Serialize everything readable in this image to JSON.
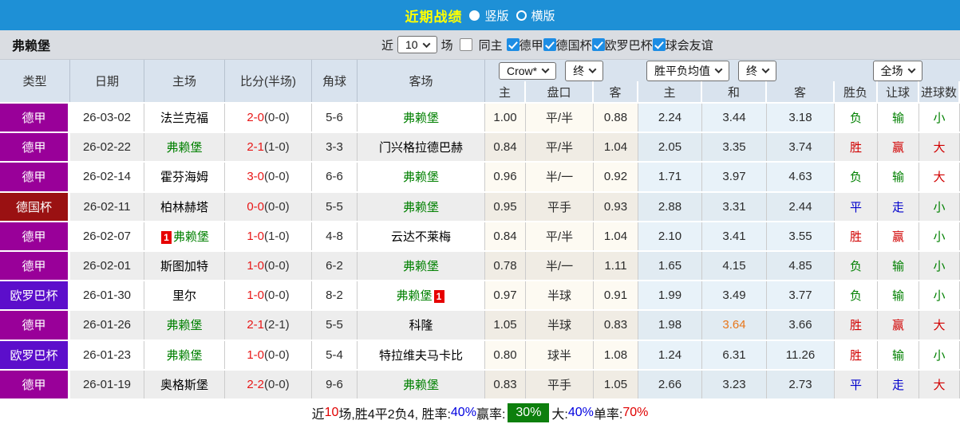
{
  "title_bar": {
    "title": "近期战绩",
    "radio_vertical": "竖版",
    "radio_horizontal": "横版"
  },
  "filter_bar": {
    "team": "弗赖堡",
    "near_label": "近",
    "count_value": "10",
    "games_label": "场",
    "same_home_label": "同主",
    "leagues": [
      "德甲",
      "德国杯",
      "欧罗巴杯",
      "球会友谊"
    ]
  },
  "table": {
    "static_headers": [
      "类型",
      "日期",
      "主场",
      "比分(半场)",
      "角球",
      "客场"
    ],
    "dropdowns": {
      "company": "Crow*",
      "company_time": "终",
      "avg": "胜平负均值",
      "avg_time": "终",
      "scope": "全场"
    },
    "sub_headers": [
      "主",
      "盘口",
      "客",
      "主",
      "和",
      "客",
      "胜负",
      "让球",
      "进球数"
    ],
    "rows": [
      {
        "type": "德甲",
        "date": "26-03-02",
        "home": {
          "name": "法兰克福",
          "self": false
        },
        "score": "2-0",
        "half": "(0-0)",
        "corners": "5-6",
        "away": {
          "name": "弗赖堡",
          "self": true
        },
        "odds": [
          "1.00",
          "平/半",
          "0.88"
        ],
        "avg": [
          "2.24",
          "3.44",
          "3.18"
        ],
        "avg_orange": -1,
        "results": [
          {
            "t": "负",
            "c": "g"
          },
          {
            "t": "输",
            "c": "g"
          },
          {
            "t": "小",
            "c": "g"
          }
        ]
      },
      {
        "type": "德甲",
        "date": "26-02-22",
        "home": {
          "name": "弗赖堡",
          "self": true
        },
        "score": "2-1",
        "half": "(1-0)",
        "corners": "3-3",
        "away": {
          "name": "门兴格拉德巴赫",
          "self": false
        },
        "odds": [
          "0.84",
          "平/半",
          "1.04"
        ],
        "avg": [
          "2.05",
          "3.35",
          "3.74"
        ],
        "avg_orange": -1,
        "results": [
          {
            "t": "胜",
            "c": "r"
          },
          {
            "t": "赢",
            "c": "r"
          },
          {
            "t": "大",
            "c": "r"
          }
        ]
      },
      {
        "type": "德甲",
        "date": "26-02-14",
        "home": {
          "name": "霍芬海姆",
          "self": false
        },
        "score": "3-0",
        "half": "(0-0)",
        "corners": "6-6",
        "away": {
          "name": "弗赖堡",
          "self": true
        },
        "odds": [
          "0.96",
          "半/一",
          "0.92"
        ],
        "avg": [
          "1.71",
          "3.97",
          "4.63"
        ],
        "avg_orange": -1,
        "results": [
          {
            "t": "负",
            "c": "g"
          },
          {
            "t": "输",
            "c": "g"
          },
          {
            "t": "大",
            "c": "r"
          }
        ]
      },
      {
        "type": "德国杯",
        "date": "26-02-11",
        "home": {
          "name": "柏林赫塔",
          "self": false
        },
        "score": "0-0",
        "half": "(0-0)",
        "corners": "5-5",
        "away": {
          "name": "弗赖堡",
          "self": true
        },
        "odds": [
          "0.95",
          "平手",
          "0.93"
        ],
        "avg": [
          "2.88",
          "3.31",
          "2.44"
        ],
        "avg_orange": -1,
        "results": [
          {
            "t": "平",
            "c": "b"
          },
          {
            "t": "走",
            "c": "b"
          },
          {
            "t": "小",
            "c": "g"
          }
        ]
      },
      {
        "type": "德甲",
        "date": "26-02-07",
        "home": {
          "name": "弗赖堡",
          "self": true,
          "badge": "before",
          "badge_text": "1"
        },
        "score": "1-0",
        "half": "(1-0)",
        "corners": "4-8",
        "away": {
          "name": "云达不莱梅",
          "self": false
        },
        "odds": [
          "0.84",
          "平/半",
          "1.04"
        ],
        "avg": [
          "2.10",
          "3.41",
          "3.55"
        ],
        "avg_orange": -1,
        "results": [
          {
            "t": "胜",
            "c": "r"
          },
          {
            "t": "赢",
            "c": "r"
          },
          {
            "t": "小",
            "c": "g"
          }
        ]
      },
      {
        "type": "德甲",
        "date": "26-02-01",
        "home": {
          "name": "斯图加特",
          "self": false
        },
        "score": "1-0",
        "half": "(0-0)",
        "corners": "6-2",
        "away": {
          "name": "弗赖堡",
          "self": true
        },
        "odds": [
          "0.78",
          "半/一",
          "1.11"
        ],
        "avg": [
          "1.65",
          "4.15",
          "4.85"
        ],
        "avg_orange": -1,
        "results": [
          {
            "t": "负",
            "c": "g"
          },
          {
            "t": "输",
            "c": "g"
          },
          {
            "t": "小",
            "c": "g"
          }
        ]
      },
      {
        "type": "欧罗巴杯",
        "date": "26-01-30",
        "home": {
          "name": "里尔",
          "self": false
        },
        "score": "1-0",
        "half": "(0-0)",
        "corners": "8-2",
        "away": {
          "name": "弗赖堡",
          "self": true,
          "badge": "after",
          "badge_text": "1"
        },
        "odds": [
          "0.97",
          "半球",
          "0.91"
        ],
        "avg": [
          "1.99",
          "3.49",
          "3.77"
        ],
        "avg_orange": -1,
        "results": [
          {
            "t": "负",
            "c": "g"
          },
          {
            "t": "输",
            "c": "g"
          },
          {
            "t": "小",
            "c": "g"
          }
        ]
      },
      {
        "type": "德甲",
        "date": "26-01-26",
        "home": {
          "name": "弗赖堡",
          "self": true
        },
        "score": "2-1",
        "half": "(2-1)",
        "corners": "5-5",
        "away": {
          "name": "科隆",
          "self": false
        },
        "odds": [
          "1.05",
          "半球",
          "0.83"
        ],
        "avg": [
          "1.98",
          "3.64",
          "3.66"
        ],
        "avg_orange": 1,
        "results": [
          {
            "t": "胜",
            "c": "r"
          },
          {
            "t": "赢",
            "c": "r"
          },
          {
            "t": "大",
            "c": "r"
          }
        ]
      },
      {
        "type": "欧罗巴杯",
        "date": "26-01-23",
        "home": {
          "name": "弗赖堡",
          "self": true
        },
        "score": "1-0",
        "half": "(0-0)",
        "corners": "5-4",
        "away": {
          "name": "特拉维夫马卡比",
          "self": false
        },
        "odds": [
          "0.80",
          "球半",
          "1.08"
        ],
        "avg": [
          "1.24",
          "6.31",
          "11.26"
        ],
        "avg_orange": -1,
        "results": [
          {
            "t": "胜",
            "c": "r"
          },
          {
            "t": "输",
            "c": "g"
          },
          {
            "t": "小",
            "c": "g"
          }
        ]
      },
      {
        "type": "德甲",
        "date": "26-01-19",
        "home": {
          "name": "奥格斯堡",
          "self": false
        },
        "score": "2-2",
        "half": "(0-0)",
        "corners": "9-6",
        "away": {
          "name": "弗赖堡",
          "self": true
        },
        "odds": [
          "0.83",
          "平手",
          "1.05"
        ],
        "avg": [
          "2.66",
          "3.23",
          "2.73"
        ],
        "avg_orange": -1,
        "results": [
          {
            "t": "平",
            "c": "b"
          },
          {
            "t": "走",
            "c": "b"
          },
          {
            "t": "大",
            "c": "r"
          }
        ]
      }
    ]
  },
  "footer": {
    "segments": [
      {
        "text": "近",
        "style": "plain"
      },
      {
        "text": "10",
        "style": "red"
      },
      {
        "text": "场,胜4平2负4, 胜率:",
        "style": "plain"
      },
      {
        "text": "40%",
        "style": "blue"
      },
      {
        "text": " 赢率:",
        "style": "plain"
      },
      {
        "text": "30%",
        "style": "green-badge"
      },
      {
        "text": " 大:",
        "style": "blue-pair-label"
      },
      {
        "text": "40%",
        "style": "blue"
      },
      {
        "text": " 单率:",
        "style": "plain"
      },
      {
        "text": "70%",
        "style": "red"
      }
    ]
  },
  "colors": {
    "type_colors": {
      "德甲": "#990099",
      "德国杯": "#9a1112",
      "欧罗巴杯": "#5c0ecb"
    },
    "result_colors": {
      "g": "#008000",
      "r": "#d10000",
      "b": "#0000cc"
    },
    "team_green": "#008000",
    "score_red": "#e81717",
    "avg_orange": "#e8761a",
    "accent_blue": "#1d8de4",
    "topbar_blue": "#1e90d6",
    "title_yellow": "#ffff00"
  }
}
